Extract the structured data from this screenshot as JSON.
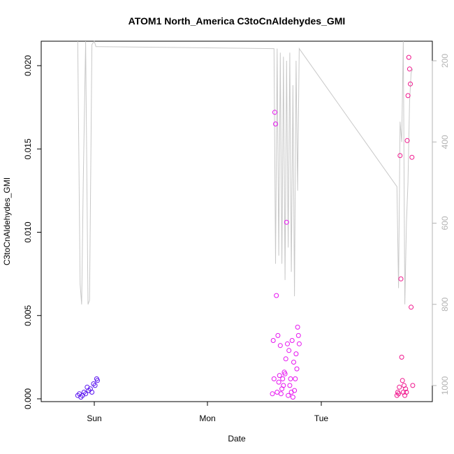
{
  "chart_data": {
    "type": "scatter",
    "title": "ATOM1 North_America C3toCnAldehydes_GMI",
    "xlabel": "Date",
    "ylabel": "C3toCnAldehydes_GMI",
    "ylim": [
      0,
      0.0215
    ],
    "x_ticks": [
      "Sun",
      "Mon",
      "Tue"
    ],
    "y_ticks": [
      "0.000",
      "0.005",
      "0.010",
      "0.015",
      "0.020"
    ],
    "y2_ticks": [
      "200",
      "400",
      "600",
      "800",
      "1000"
    ],
    "y2_reversed": true,
    "y2_range": [
      1018,
      150
    ],
    "grid": false,
    "colors": {
      "series_1": "#5a14f0",
      "series_2": "#e614f0",
      "series_3": "#f0148c",
      "pressure_line": "#c8c8c8",
      "axis": "#000000",
      "right_axis": "#b3b3b3"
    },
    "pressure_line": {
      "x": [
        "2020-01-31T20:30",
        "2020-01-31T21:00",
        "2020-01-31T21:20",
        "2020-01-31T21:40",
        "2020-01-31T22:10",
        "2020-01-31T22:40",
        "2020-01-31T23:00",
        "2020-01-31T23:30",
        "2020-02-01T00:00",
        "2020-02-01T00:20",
        "2020-02-01T00:40",
        "2020-02-02T14:00",
        "2020-02-02T14:20",
        "2020-02-02T14:40",
        "2020-02-02T15:00",
        "2020-02-02T15:20",
        "2020-02-02T15:40",
        "2020-02-02T16:00",
        "2020-02-02T16:20",
        "2020-02-02T16:40",
        "2020-02-02T17:00",
        "2020-02-02T17:20",
        "2020-02-02T17:40",
        "2020-02-02T18:00",
        "2020-02-02T18:20",
        "2020-02-02T18:40",
        "2020-02-02T19:00",
        "2020-02-02T19:20",
        "2020-02-03T16:00",
        "2020-02-03T16:20",
        "2020-02-03T16:40",
        "2020-02-03T17:00",
        "2020-02-03T17:20",
        "2020-02-03T17:40",
        "2020-02-03T18:00",
        "2020-02-03T18:20",
        "2020-02-03T18:40",
        "2020-02-03T19:00",
        "2020-02-03T19:20"
      ],
      "pressure_hpa": [
        150,
        750,
        800,
        500,
        150,
        800,
        790,
        160,
        150,
        165,
        165,
        170,
        700,
        170,
        680,
        180,
        700,
        190,
        740,
        200,
        660,
        180,
        720,
        260,
        780,
        200,
        520,
        170,
        510,
        760,
        350,
        400,
        150,
        800,
        600,
        500,
        300,
        230,
        220
      ]
    },
    "series": [
      {
        "x": [
          "2020-01-31T20:30",
          "2020-01-31T20:50",
          "2020-01-31T21:10",
          "2020-01-31T21:30",
          "2020-01-31T21:50",
          "2020-01-31T22:10",
          "2020-01-31T22:30",
          "2020-01-31T22:50",
          "2020-01-31T23:10",
          "2020-01-31T23:30",
          "2020-01-31T23:50",
          "2020-02-01T00:10",
          "2020-02-01T00:30",
          "2020-02-01T00:40"
        ],
        "y": [
          0.0002,
          0.0003,
          0.0001,
          0.0002,
          0.0004,
          0.0003,
          0.0007,
          0.0005,
          0.0006,
          0.0004,
          0.0009,
          0.0008,
          0.0012,
          0.0011
        ]
      },
      {
        "x": [
          "2020-02-02T13:40",
          "2020-02-02T13:50",
          "2020-02-02T14:00",
          "2020-02-02T14:10",
          "2020-02-02T14:20",
          "2020-02-02T14:30",
          "2020-02-02T14:40",
          "2020-02-02T14:50",
          "2020-02-02T15:00",
          "2020-02-02T15:10",
          "2020-02-02T15:20",
          "2020-02-02T15:30",
          "2020-02-02T15:40",
          "2020-02-02T15:50",
          "2020-02-02T16:00",
          "2020-02-02T16:10",
          "2020-02-02T16:20",
          "2020-02-02T16:30",
          "2020-02-02T16:40",
          "2020-02-02T16:50",
          "2020-02-02T17:00",
          "2020-02-02T17:10",
          "2020-02-02T17:20",
          "2020-02-02T17:30",
          "2020-02-02T17:40",
          "2020-02-02T17:50",
          "2020-02-02T18:00",
          "2020-02-02T18:10",
          "2020-02-02T18:20",
          "2020-02-02T18:30",
          "2020-02-02T18:40",
          "2020-02-02T18:50",
          "2020-02-02T19:00",
          "2020-02-02T19:10",
          "2020-02-02T19:20"
        ],
        "y": [
          0.0003,
          0.0035,
          0.0012,
          0.0172,
          0.0165,
          0.0062,
          0.0004,
          0.0038,
          0.001,
          0.0014,
          0.0032,
          0.0003,
          0.0006,
          0.0012,
          0.0008,
          0.0016,
          0.0015,
          0.0024,
          0.0106,
          0.0033,
          0.0002,
          0.0029,
          0.0008,
          0.0012,
          0.0004,
          0.0035,
          0.0001,
          0.0022,
          0.0005,
          0.0012,
          0.0027,
          0.0018,
          0.0043,
          0.0038,
          0.0033
        ]
      },
      {
        "x": [
          "2020-02-03T16:00",
          "2020-02-03T16:10",
          "2020-02-03T16:20",
          "2020-02-03T16:30",
          "2020-02-03T16:40",
          "2020-02-03T16:50",
          "2020-02-03T17:00",
          "2020-02-03T17:10",
          "2020-02-03T17:20",
          "2020-02-03T17:30",
          "2020-02-03T17:40",
          "2020-02-03T17:50",
          "2020-02-03T18:00",
          "2020-02-03T18:10",
          "2020-02-03T18:20",
          "2020-02-03T18:30",
          "2020-02-03T18:40",
          "2020-02-03T18:50",
          "2020-02-03T19:00",
          "2020-02-03T19:10",
          "2020-02-03T19:20"
        ],
        "y": [
          0.0002,
          0.0004,
          0.0003,
          0.0007,
          0.0146,
          0.0072,
          0.0025,
          0.0011,
          0.0004,
          0.0008,
          0.0002,
          0.0006,
          0.0004,
          0.0155,
          0.0182,
          0.0205,
          0.0198,
          0.0189,
          0.0055,
          0.0145,
          0.0008
        ]
      }
    ]
  }
}
